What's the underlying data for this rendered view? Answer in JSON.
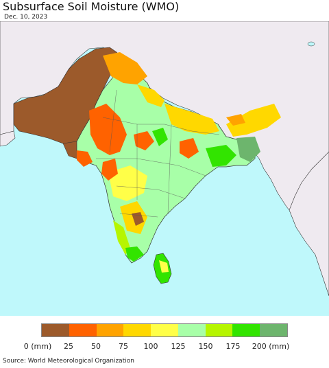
{
  "title": "Subsurface Soil Moisture (WMO)",
  "date": "Dec. 10, 2023",
  "legend": {
    "colors": [
      "#9c5a2b",
      "#ff6200",
      "#ffa300",
      "#ffd800",
      "#ffff48",
      "#a8ffa8",
      "#b6f500",
      "#32e400",
      "#6db56d"
    ],
    "labels": [
      "0 (mm)",
      "25",
      "50",
      "75",
      "100",
      "125",
      "150",
      "175",
      "200 (mm)"
    ]
  },
  "source": "Source: World Meteorological Organization",
  "colors": {
    "ocean": "#bff8fb",
    "land_outside": "#efeaf0",
    "border": "#222222"
  }
}
